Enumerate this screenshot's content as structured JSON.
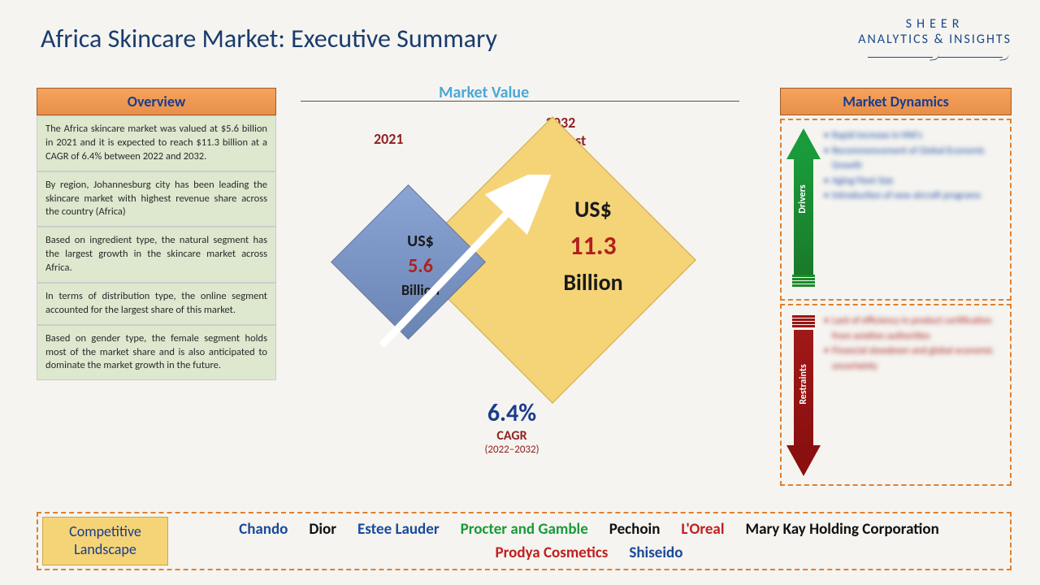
{
  "title": "Africa Skincare Market: Executive Summary",
  "brand": {
    "line1": "SHEER",
    "line2": "ANALYTICS & INSIGHTS"
  },
  "overview": {
    "header": "Overview",
    "boxes": [
      "The Africa skincare market was valued at $5.6 billion in 2021 and it is expected to reach $11.3 billion at a CAGR of 6.4% between 2022 and 2032.",
      "By region, Johannesburg city has been leading the skincare market with highest revenue share across the country (Africa)",
      "Based on ingredient type, the natural segment has the largest growth in the skincare market across Africa.",
      "In terms of distribution type, the online segment accounted for the largest share of this market.",
      "Based on gender type, the female segment holds most of the market share and is also anticipated to dominate the market growth in the future."
    ]
  },
  "market_value": {
    "label": "Market Value",
    "year_base": "2021",
    "year_forecast_line1": "2032",
    "year_forecast_line2": "Forecast",
    "currency": "US$",
    "base_value": "5.6",
    "forecast_value": "11.3",
    "unit": "Billion",
    "cagr_pct": "6.4%",
    "cagr_label": "CAGR",
    "cagr_years": "(2022–2032)",
    "colors": {
      "small_diamond": "#7a94c4",
      "big_diamond": "#f5d477",
      "accent_red": "#b02020",
      "accent_navy": "#1a3c8e"
    }
  },
  "dynamics": {
    "header": "Market Dynamics",
    "drivers": {
      "label": "Drivers",
      "items": [
        "Rapid increase in HNI's",
        "Recommencement of Global Economic Growth",
        "Aging Fleet Size",
        "Introduction of new aircraft programs"
      ],
      "arrow_color": "#1a9a3a"
    },
    "restraints": {
      "label": "Restraints",
      "items": [
        "Lack of efficiency in product certification from aviation authorities",
        "Financial slowdown and global economic uncertainty"
      ],
      "arrow_color": "#a01818"
    }
  },
  "competitive": {
    "label_line1": "Competitive",
    "label_line2": "Landscape",
    "companies": [
      {
        "name": "Chando",
        "color": "#1a4a9a"
      },
      {
        "name": "Dior",
        "color": "#111"
      },
      {
        "name": "Estee Lauder",
        "color": "#1a4a9a"
      },
      {
        "name": "Procter and Gamble",
        "color": "#1a9a3a"
      },
      {
        "name": "Pechoin",
        "color": "#111"
      },
      {
        "name": "L'Oreal",
        "color": "#c02020"
      },
      {
        "name": "Mary Kay Holding Corporation",
        "color": "#111"
      },
      {
        "name": "Prodya Cosmetics",
        "color": "#c02020"
      },
      {
        "name": "Shiseido",
        "color": "#1a4a9a"
      }
    ]
  }
}
